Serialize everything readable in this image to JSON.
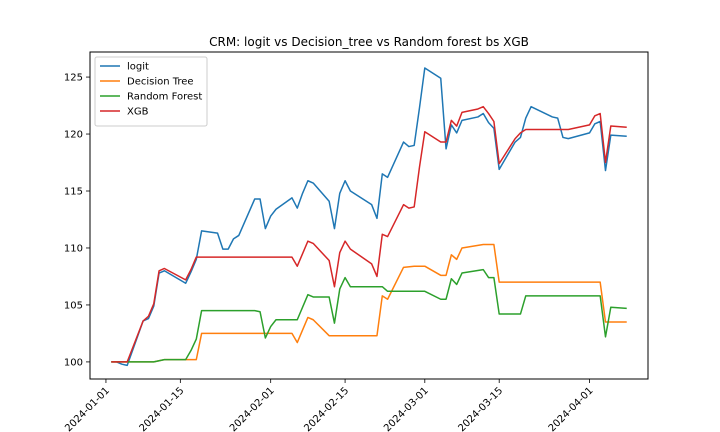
{
  "chart_data": {
    "type": "line",
    "title": "CRM: logit vs Decision_tree vs Random forest bs XGB",
    "xlabel": "",
    "ylabel": "",
    "xlim": [
      "2023-12-29",
      "2024-04-12"
    ],
    "ylim": [
      98.5,
      127.2
    ],
    "grid": false,
    "legend_position": "top-left",
    "x_ticks": [
      "2024-01-01",
      "2024-01-15",
      "2024-02-01",
      "2024-02-15",
      "2024-03-01",
      "2024-03-15",
      "2024-04-01"
    ],
    "y_ticks": [
      100,
      105,
      110,
      115,
      120,
      125
    ],
    "series": [
      {
        "name": "logit",
        "color": "#1f77b4",
        "points": [
          [
            "2024-01-02",
            100.0
          ],
          [
            "2024-01-03",
            100.0
          ],
          [
            "2024-01-04",
            99.8
          ],
          [
            "2024-01-05",
            99.7
          ],
          [
            "2024-01-08",
            103.6
          ],
          [
            "2024-01-09",
            103.8
          ],
          [
            "2024-01-10",
            104.9
          ],
          [
            "2024-01-11",
            107.8
          ],
          [
            "2024-01-12",
            108.0
          ],
          [
            "2024-01-16",
            106.9
          ],
          [
            "2024-01-17",
            107.9
          ],
          [
            "2024-01-18",
            109.0
          ],
          [
            "2024-01-19",
            111.5
          ],
          [
            "2024-01-22",
            111.3
          ],
          [
            "2024-01-23",
            109.9
          ],
          [
            "2024-01-24",
            109.9
          ],
          [
            "2024-01-25",
            110.8
          ],
          [
            "2024-01-26",
            111.1
          ],
          [
            "2024-01-29",
            114.3
          ],
          [
            "2024-01-30",
            114.3
          ],
          [
            "2024-01-31",
            111.7
          ],
          [
            "2024-02-01",
            112.8
          ],
          [
            "2024-02-02",
            113.4
          ],
          [
            "2024-02-05",
            114.4
          ],
          [
            "2024-02-06",
            113.5
          ],
          [
            "2024-02-07",
            114.8
          ],
          [
            "2024-02-08",
            115.9
          ],
          [
            "2024-02-09",
            115.7
          ],
          [
            "2024-02-12",
            114.1
          ],
          [
            "2024-02-13",
            111.7
          ],
          [
            "2024-02-14",
            114.8
          ],
          [
            "2024-02-15",
            115.9
          ],
          [
            "2024-02-16",
            115.0
          ],
          [
            "2024-02-20",
            113.8
          ],
          [
            "2024-02-21",
            112.6
          ],
          [
            "2024-02-22",
            116.5
          ],
          [
            "2024-02-23",
            116.2
          ],
          [
            "2024-02-26",
            119.3
          ],
          [
            "2024-02-27",
            118.9
          ],
          [
            "2024-02-28",
            119.0
          ],
          [
            "2024-02-29",
            122.3
          ],
          [
            "2024-03-01",
            125.8
          ],
          [
            "2024-03-04",
            124.9
          ],
          [
            "2024-03-05",
            118.7
          ],
          [
            "2024-03-06",
            120.8
          ],
          [
            "2024-03-07",
            120.1
          ],
          [
            "2024-03-08",
            121.2
          ],
          [
            "2024-03-11",
            121.5
          ],
          [
            "2024-03-12",
            121.8
          ],
          [
            "2024-03-13",
            121.0
          ],
          [
            "2024-03-14",
            120.5
          ],
          [
            "2024-03-15",
            116.9
          ],
          [
            "2024-03-18",
            119.3
          ],
          [
            "2024-03-19",
            119.7
          ],
          [
            "2024-03-20",
            121.4
          ],
          [
            "2024-03-21",
            122.4
          ],
          [
            "2024-03-25",
            121.5
          ],
          [
            "2024-03-26",
            121.4
          ],
          [
            "2024-03-27",
            119.7
          ],
          [
            "2024-03-28",
            119.6
          ],
          [
            "2024-04-01",
            120.1
          ],
          [
            "2024-04-02",
            120.9
          ],
          [
            "2024-04-03",
            121.1
          ],
          [
            "2024-04-04",
            116.8
          ],
          [
            "2024-04-05",
            119.9
          ],
          [
            "2024-04-08",
            119.8
          ]
        ]
      },
      {
        "name": "Decision Tree",
        "color": "#ff7f0e",
        "points": [
          [
            "2024-01-02",
            100.0
          ],
          [
            "2024-01-05",
            100.0
          ],
          [
            "2024-01-10",
            100.0
          ],
          [
            "2024-01-12",
            100.2
          ],
          [
            "2024-01-17",
            100.2
          ],
          [
            "2024-01-18",
            100.2
          ],
          [
            "2024-01-19",
            102.5
          ],
          [
            "2024-01-31",
            102.5
          ],
          [
            "2024-02-05",
            102.5
          ],
          [
            "2024-02-06",
            101.7
          ],
          [
            "2024-02-08",
            103.9
          ],
          [
            "2024-02-09",
            103.7
          ],
          [
            "2024-02-12",
            102.3
          ],
          [
            "2024-02-21",
            102.3
          ],
          [
            "2024-02-22",
            105.8
          ],
          [
            "2024-02-23",
            105.5
          ],
          [
            "2024-02-26",
            108.3
          ],
          [
            "2024-02-28",
            108.4
          ],
          [
            "2024-03-01",
            108.4
          ],
          [
            "2024-03-04",
            107.6
          ],
          [
            "2024-03-05",
            107.6
          ],
          [
            "2024-03-06",
            109.4
          ],
          [
            "2024-03-07",
            109.0
          ],
          [
            "2024-03-08",
            110.0
          ],
          [
            "2024-03-12",
            110.3
          ],
          [
            "2024-03-14",
            110.3
          ],
          [
            "2024-03-15",
            107.0
          ],
          [
            "2024-04-01",
            107.0
          ],
          [
            "2024-04-03",
            107.0
          ],
          [
            "2024-04-04",
            103.5
          ],
          [
            "2024-04-08",
            103.5
          ]
        ]
      },
      {
        "name": "Random Forest",
        "color": "#2ca02c",
        "points": [
          [
            "2024-01-02",
            100.0
          ],
          [
            "2024-01-05",
            100.0
          ],
          [
            "2024-01-10",
            100.0
          ],
          [
            "2024-01-12",
            100.2
          ],
          [
            "2024-01-16",
            100.2
          ],
          [
            "2024-01-17",
            101.0
          ],
          [
            "2024-01-18",
            102.0
          ],
          [
            "2024-01-19",
            104.5
          ],
          [
            "2024-01-29",
            104.5
          ],
          [
            "2024-01-30",
            104.4
          ],
          [
            "2024-01-31",
            102.1
          ],
          [
            "2024-02-01",
            103.1
          ],
          [
            "2024-02-02",
            103.7
          ],
          [
            "2024-02-06",
            103.7
          ],
          [
            "2024-02-08",
            105.9
          ],
          [
            "2024-02-09",
            105.7
          ],
          [
            "2024-02-12",
            105.7
          ],
          [
            "2024-02-13",
            103.4
          ],
          [
            "2024-02-14",
            106.4
          ],
          [
            "2024-02-15",
            107.4
          ],
          [
            "2024-02-16",
            106.6
          ],
          [
            "2024-02-22",
            106.6
          ],
          [
            "2024-02-23",
            106.2
          ],
          [
            "2024-03-01",
            106.2
          ],
          [
            "2024-03-04",
            105.5
          ],
          [
            "2024-03-05",
            105.5
          ],
          [
            "2024-03-06",
            107.3
          ],
          [
            "2024-03-07",
            106.8
          ],
          [
            "2024-03-08",
            107.8
          ],
          [
            "2024-03-12",
            108.1
          ],
          [
            "2024-03-13",
            107.4
          ],
          [
            "2024-03-14",
            107.4
          ],
          [
            "2024-03-15",
            104.2
          ],
          [
            "2024-03-18",
            104.2
          ],
          [
            "2024-03-19",
            104.2
          ],
          [
            "2024-03-20",
            105.8
          ],
          [
            "2024-04-01",
            105.8
          ],
          [
            "2024-04-03",
            105.8
          ],
          [
            "2024-04-04",
            102.2
          ],
          [
            "2024-04-05",
            104.8
          ],
          [
            "2024-04-08",
            104.7
          ]
        ]
      },
      {
        "name": "XGB",
        "color": "#d62728",
        "points": [
          [
            "2024-01-02",
            100.0
          ],
          [
            "2024-01-05",
            100.0
          ],
          [
            "2024-01-08",
            103.6
          ],
          [
            "2024-01-09",
            104.0
          ],
          [
            "2024-01-10",
            105.1
          ],
          [
            "2024-01-11",
            108.0
          ],
          [
            "2024-01-12",
            108.2
          ],
          [
            "2024-01-16",
            107.2
          ],
          [
            "2024-01-17",
            108.1
          ],
          [
            "2024-01-18",
            109.2
          ],
          [
            "2024-01-19",
            109.2
          ],
          [
            "2024-02-05",
            109.2
          ],
          [
            "2024-02-06",
            108.4
          ],
          [
            "2024-02-08",
            110.6
          ],
          [
            "2024-02-09",
            110.4
          ],
          [
            "2024-02-12",
            108.9
          ],
          [
            "2024-02-13",
            106.6
          ],
          [
            "2024-02-14",
            109.6
          ],
          [
            "2024-02-15",
            110.6
          ],
          [
            "2024-02-16",
            109.9
          ],
          [
            "2024-02-20",
            108.6
          ],
          [
            "2024-02-21",
            107.5
          ],
          [
            "2024-02-22",
            111.2
          ],
          [
            "2024-02-23",
            111.0
          ],
          [
            "2024-02-26",
            113.8
          ],
          [
            "2024-02-27",
            113.5
          ],
          [
            "2024-02-28",
            113.6
          ],
          [
            "2024-02-29",
            117.1
          ],
          [
            "2024-03-01",
            120.2
          ],
          [
            "2024-03-04",
            119.3
          ],
          [
            "2024-03-05",
            119.3
          ],
          [
            "2024-03-06",
            121.2
          ],
          [
            "2024-03-07",
            120.7
          ],
          [
            "2024-03-08",
            121.9
          ],
          [
            "2024-03-11",
            122.2
          ],
          [
            "2024-03-12",
            122.4
          ],
          [
            "2024-03-13",
            121.8
          ],
          [
            "2024-03-14",
            121.1
          ],
          [
            "2024-03-15",
            117.4
          ],
          [
            "2024-03-18",
            119.6
          ],
          [
            "2024-03-19",
            120.1
          ],
          [
            "2024-03-20",
            120.4
          ],
          [
            "2024-03-28",
            120.4
          ],
          [
            "2024-04-01",
            120.8
          ],
          [
            "2024-04-02",
            121.6
          ],
          [
            "2024-04-03",
            121.8
          ],
          [
            "2024-04-04",
            117.5
          ],
          [
            "2024-04-05",
            120.7
          ],
          [
            "2024-04-08",
            120.6
          ]
        ]
      }
    ]
  }
}
